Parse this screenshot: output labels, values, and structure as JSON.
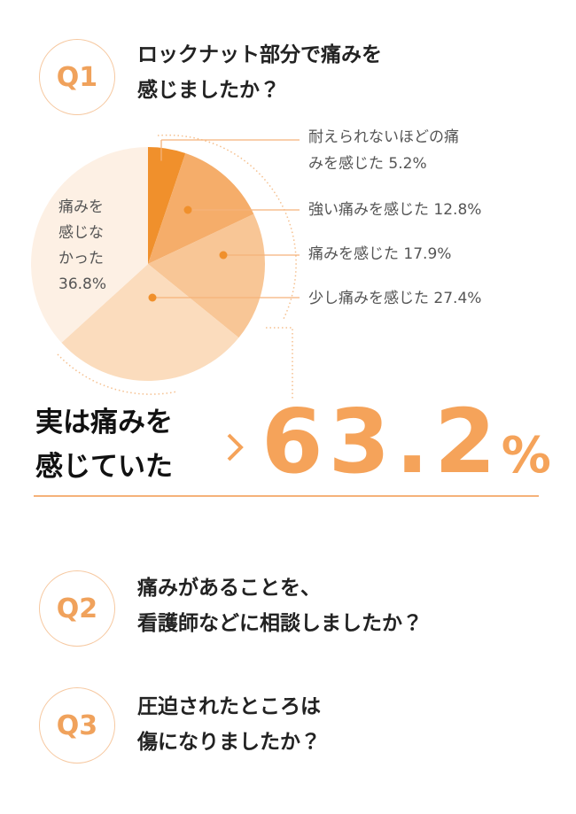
{
  "questions": [
    {
      "label": "Q1",
      "lines": [
        "ロックナット部分で痛みを",
        "感じましたか？"
      ]
    },
    {
      "label": "Q2",
      "lines": [
        "痛みがあることを、",
        "看護師などに相談しましたか？"
      ]
    },
    {
      "label": "Q3",
      "lines": [
        "圧迫されたところは",
        "傷になりましたか？"
      ]
    }
  ],
  "chart_data": {
    "type": "pie",
    "categories": [
      "耐えられないほどの痛みを感じた",
      "強い痛みを感じた",
      "痛みを感じた",
      "少し痛みを感じた",
      "痛みを感じなかった"
    ],
    "values": [
      5.2,
      12.8,
      17.9,
      27.4,
      36.8
    ],
    "value_labels": [
      "5.2%",
      "12.8%",
      "17.9%",
      "27.4%",
      "36.8%"
    ],
    "colors": [
      "#f0902c",
      "#f5ad6a",
      "#f8c696",
      "#fbdcbd",
      "#fdf0e4"
    ]
  },
  "summary": {
    "lines": [
      "実は痛みを",
      "感じていた"
    ],
    "number": "63.2",
    "unit": "%"
  }
}
